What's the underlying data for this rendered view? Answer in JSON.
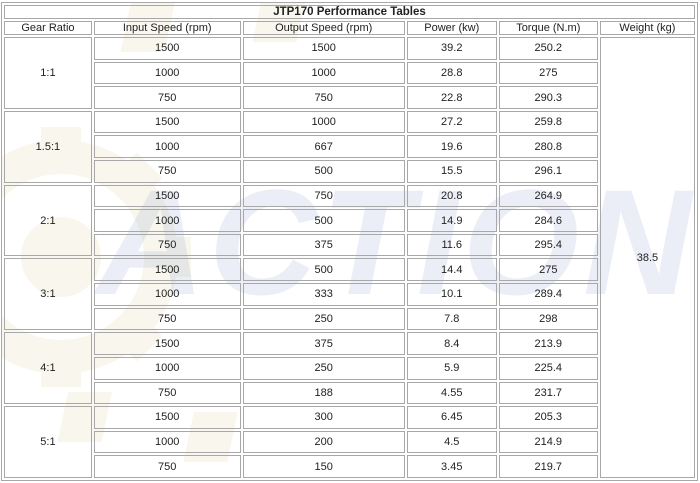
{
  "title": "JTP170 Performance Tables",
  "headers": [
    "Gear Ratio",
    "Input Speed (rpm)",
    "Output Speed (rpm)",
    "Power (kw)",
    "Torque (N.m)",
    "Weight (kg)"
  ],
  "weight": "38.5",
  "groups": [
    {
      "ratio": "1:1",
      "rows": [
        {
          "input": "1500",
          "output": "1500",
          "power": "39.2",
          "torque": "250.2"
        },
        {
          "input": "1000",
          "output": "1000",
          "power": "28.8",
          "torque": "275"
        },
        {
          "input": "750",
          "output": "750",
          "power": "22.8",
          "torque": "290.3"
        }
      ]
    },
    {
      "ratio": "1.5:1",
      "rows": [
        {
          "input": "1500",
          "output": "1000",
          "power": "27.2",
          "torque": "259.8"
        },
        {
          "input": "1000",
          "output": "667",
          "power": "19.6",
          "torque": "280.8"
        },
        {
          "input": "750",
          "output": "500",
          "power": "15.5",
          "torque": "296.1"
        }
      ]
    },
    {
      "ratio": "2:1",
      "rows": [
        {
          "input": "1500",
          "output": "750",
          "power": "20.8",
          "torque": "264.9"
        },
        {
          "input": "1000",
          "output": "500",
          "power": "14.9",
          "torque": "284.6"
        },
        {
          "input": "750",
          "output": "375",
          "power": "11.6",
          "torque": "295.4"
        }
      ]
    },
    {
      "ratio": "3:1",
      "rows": [
        {
          "input": "1500",
          "output": "500",
          "power": "14.4",
          "torque": "275"
        },
        {
          "input": "1000",
          "output": "333",
          "power": "10.1",
          "torque": "289.4"
        },
        {
          "input": "750",
          "output": "250",
          "power": "7.8",
          "torque": "298"
        }
      ]
    },
    {
      "ratio": "4:1",
      "rows": [
        {
          "input": "1500",
          "output": "375",
          "power": "8.4",
          "torque": "213.9"
        },
        {
          "input": "1000",
          "output": "250",
          "power": "5.9",
          "torque": "225.4"
        },
        {
          "input": "750",
          "output": "188",
          "power": "4.55",
          "torque": "231.7"
        }
      ]
    },
    {
      "ratio": "5:1",
      "rows": [
        {
          "input": "1500",
          "output": "300",
          "power": "6.45",
          "torque": "205.3"
        },
        {
          "input": "1000",
          "output": "200",
          "power": "4.5",
          "torque": "214.9"
        },
        {
          "input": "750",
          "output": "150",
          "power": "3.45",
          "torque": "219.7"
        }
      ]
    }
  ],
  "watermark": {
    "text": "ACTION",
    "color": "#6f86c2",
    "gear_color": "#dccf98"
  },
  "colors": {
    "border": "#a8a8a8",
    "text": "#222222",
    "background": "#ffffff"
  }
}
